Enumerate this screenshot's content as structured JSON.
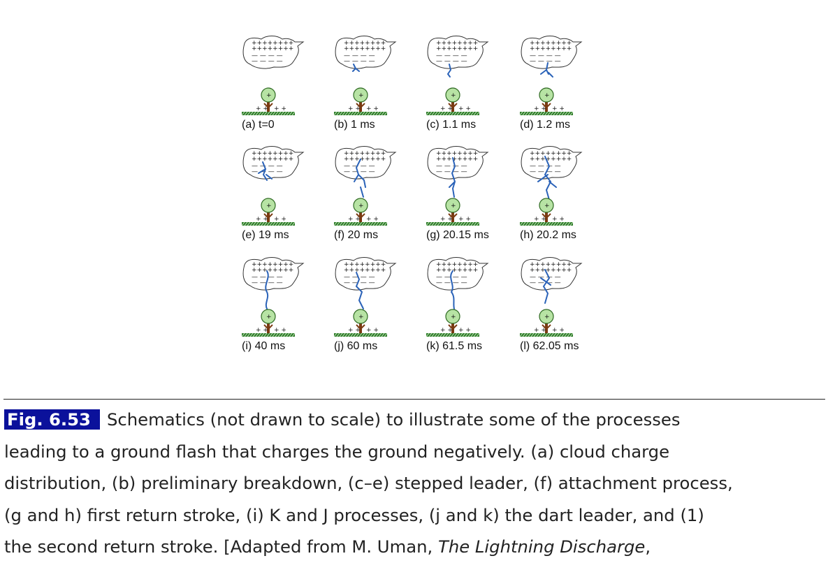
{
  "figure": {
    "panels": [
      {
        "id": "a",
        "label": "(a) t=0"
      },
      {
        "id": "b",
        "label": "(b) 1 ms"
      },
      {
        "id": "c",
        "label": "(c) 1.1 ms"
      },
      {
        "id": "d",
        "label": "(d) 1.2 ms"
      },
      {
        "id": "e",
        "label": "(e) 19 ms"
      },
      {
        "id": "f",
        "label": "(f) 20 ms"
      },
      {
        "id": "g",
        "label": "(g) 20.15 ms"
      },
      {
        "id": "h",
        "label": "(h) 20.2 ms"
      },
      {
        "id": "i",
        "label": "(i) 40 ms"
      },
      {
        "id": "j",
        "label": "(j) 60 ms"
      },
      {
        "id": "k",
        "label": "(k) 61.5 ms"
      },
      {
        "id": "l",
        "label": "(l) 62.05 ms"
      }
    ],
    "colors": {
      "channel": "#2a62b8",
      "tree_crown": "#b7e3a4",
      "tree_trunk": "#7a3a12",
      "ground": "#2f7d2a"
    }
  },
  "caption": {
    "tag": "Fig. 6.53",
    "lines": [
      "Schematics (not drawn to scale) to illustrate some of the processes",
      "leading to a ground flash that charges the ground negatively. (a) cloud charge",
      "distribution, (b) preliminary breakdown, (c–e) stepped leader, (f) attachment process,",
      "(g and h) first return stroke, (i) K and J processes, (j and k) the dart leader, and (1)",
      "the second return stroke. [Adapted from M. Uman, "
    ],
    "italic_ref": "The Lightning Discharge",
    "trailing": ","
  }
}
